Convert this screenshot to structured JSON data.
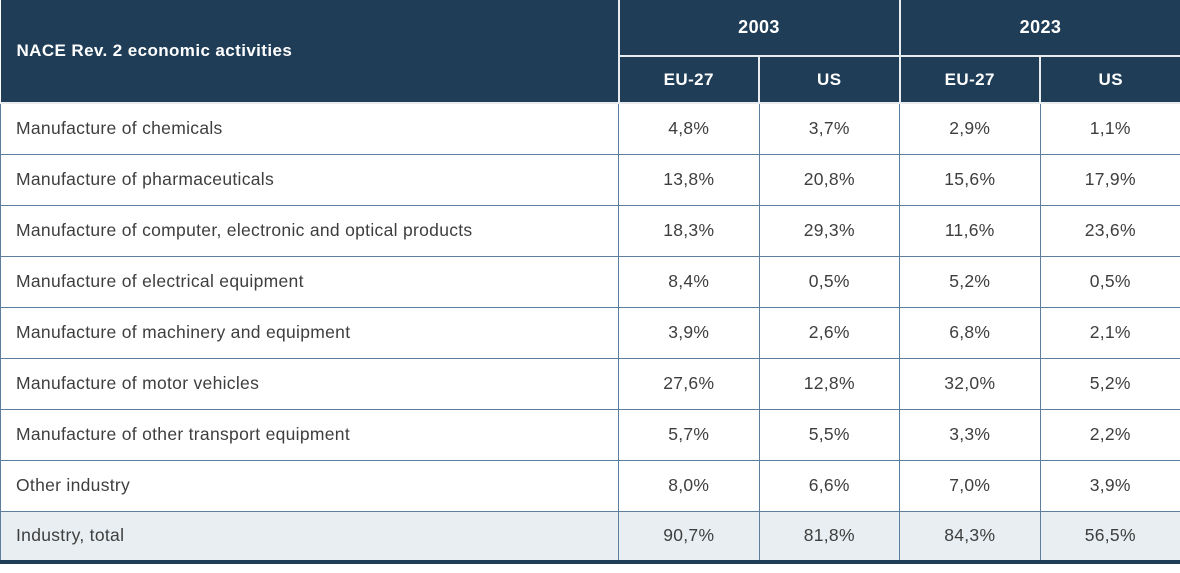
{
  "chart_data": {
    "type": "table",
    "row_header_label": "NACE Rev. 2 economic activities",
    "column_groups": [
      "2003",
      "2023"
    ],
    "columns": [
      "EU-27",
      "US",
      "EU-27",
      "US"
    ],
    "rows": [
      {
        "label": "Manufacture of chemicals",
        "values": [
          "4,8%",
          "3,7%",
          "2,9%",
          "1,1%"
        ]
      },
      {
        "label": "Manufacture of pharmaceuticals",
        "values": [
          "13,8%",
          "20,8%",
          "15,6%",
          "17,9%"
        ]
      },
      {
        "label": "Manufacture of computer, electronic and optical products",
        "values": [
          "18,3%",
          "29,3%",
          "11,6%",
          "23,6%"
        ]
      },
      {
        "label": "Manufacture of electrical equipment",
        "values": [
          "8,4%",
          "0,5%",
          "5,2%",
          "0,5%"
        ]
      },
      {
        "label": "Manufacture of machinery and equipment",
        "values": [
          "3,9%",
          "2,6%",
          "6,8%",
          "2,1%"
        ]
      },
      {
        "label": "Manufacture of motor vehicles",
        "values": [
          "27,6%",
          "12,8%",
          "32,0%",
          "5,2%"
        ]
      },
      {
        "label": "Manufacture of other transport equipment",
        "values": [
          "5,7%",
          "5,5%",
          "3,3%",
          "2,2%"
        ]
      },
      {
        "label": "Other industry",
        "values": [
          "8,0%",
          "6,6%",
          "7,0%",
          "3,9%"
        ]
      }
    ],
    "total_row": {
      "label": "Industry, total",
      "values": [
        "90,7%",
        "81,8%",
        "84,3%",
        "56,5%"
      ]
    }
  },
  "colors": {
    "header_bg": "#1f3d57",
    "header_text": "#ffffff",
    "header_divider": "#e8ecef",
    "body_border": "#5d7f9e",
    "body_text": "#3e3e3e",
    "total_row_bg": "#e8eef1",
    "bottom_border": "#1f3d57"
  }
}
